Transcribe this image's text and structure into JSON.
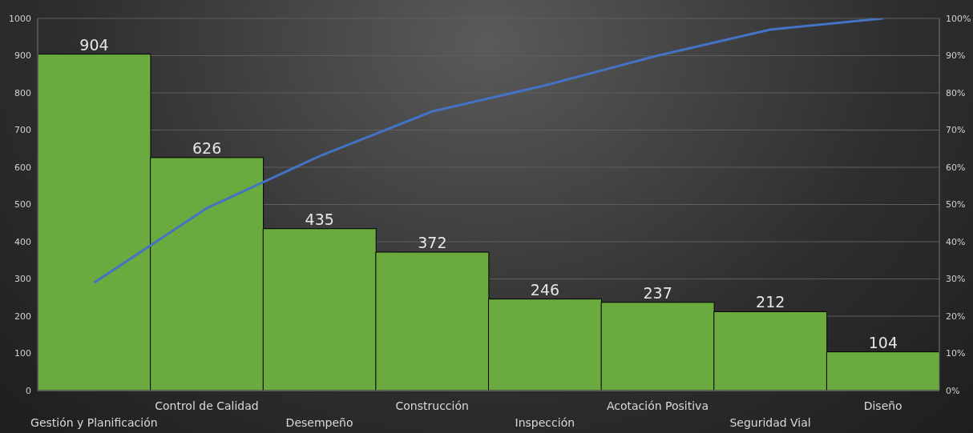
{
  "chart_data": {
    "type": "bar",
    "categories": [
      "Gestión y Planificación",
      "Control de Calidad",
      "Desempeño",
      "Construcción",
      "Inspección",
      "Acotación Positiva",
      "Seguridad Vial",
      "Diseño"
    ],
    "series": [
      {
        "color": "#6aaa3f",
        "values": [
          904,
          626,
          435,
          372,
          246,
          237,
          212,
          104
        ],
        "value_labels": [
          "904",
          "626",
          "435",
          "372",
          "246",
          "237",
          "212",
          "104"
        ]
      },
      {
        "type": "line",
        "axis": "y2",
        "color": "#4472c4",
        "values": [
          29,
          49,
          63,
          75,
          82,
          90,
          97,
          100
        ]
      }
    ],
    "ylim": [
      0,
      1000
    ],
    "yticks": [
      0,
      100,
      200,
      300,
      400,
      500,
      600,
      700,
      800,
      900,
      1000
    ],
    "y2lim": [
      0,
      100
    ],
    "y2ticks": [
      {
        "value": 0,
        "label": "0%"
      },
      {
        "value": 10,
        "label": "10%"
      },
      {
        "value": 20,
        "label": "20%"
      },
      {
        "value": 30,
        "label": "30%"
      },
      {
        "value": 40,
        "label": "40%"
      },
      {
        "value": 50,
        "label": "50%"
      },
      {
        "value": 60,
        "label": "60%"
      },
      {
        "value": 70,
        "label": "70%"
      },
      {
        "value": 80,
        "label": "80%"
      },
      {
        "value": 90,
        "label": "90%"
      },
      {
        "value": 100,
        "label": "100%"
      }
    ],
    "grid": "y",
    "marker": "none",
    "line_style": "solid"
  }
}
